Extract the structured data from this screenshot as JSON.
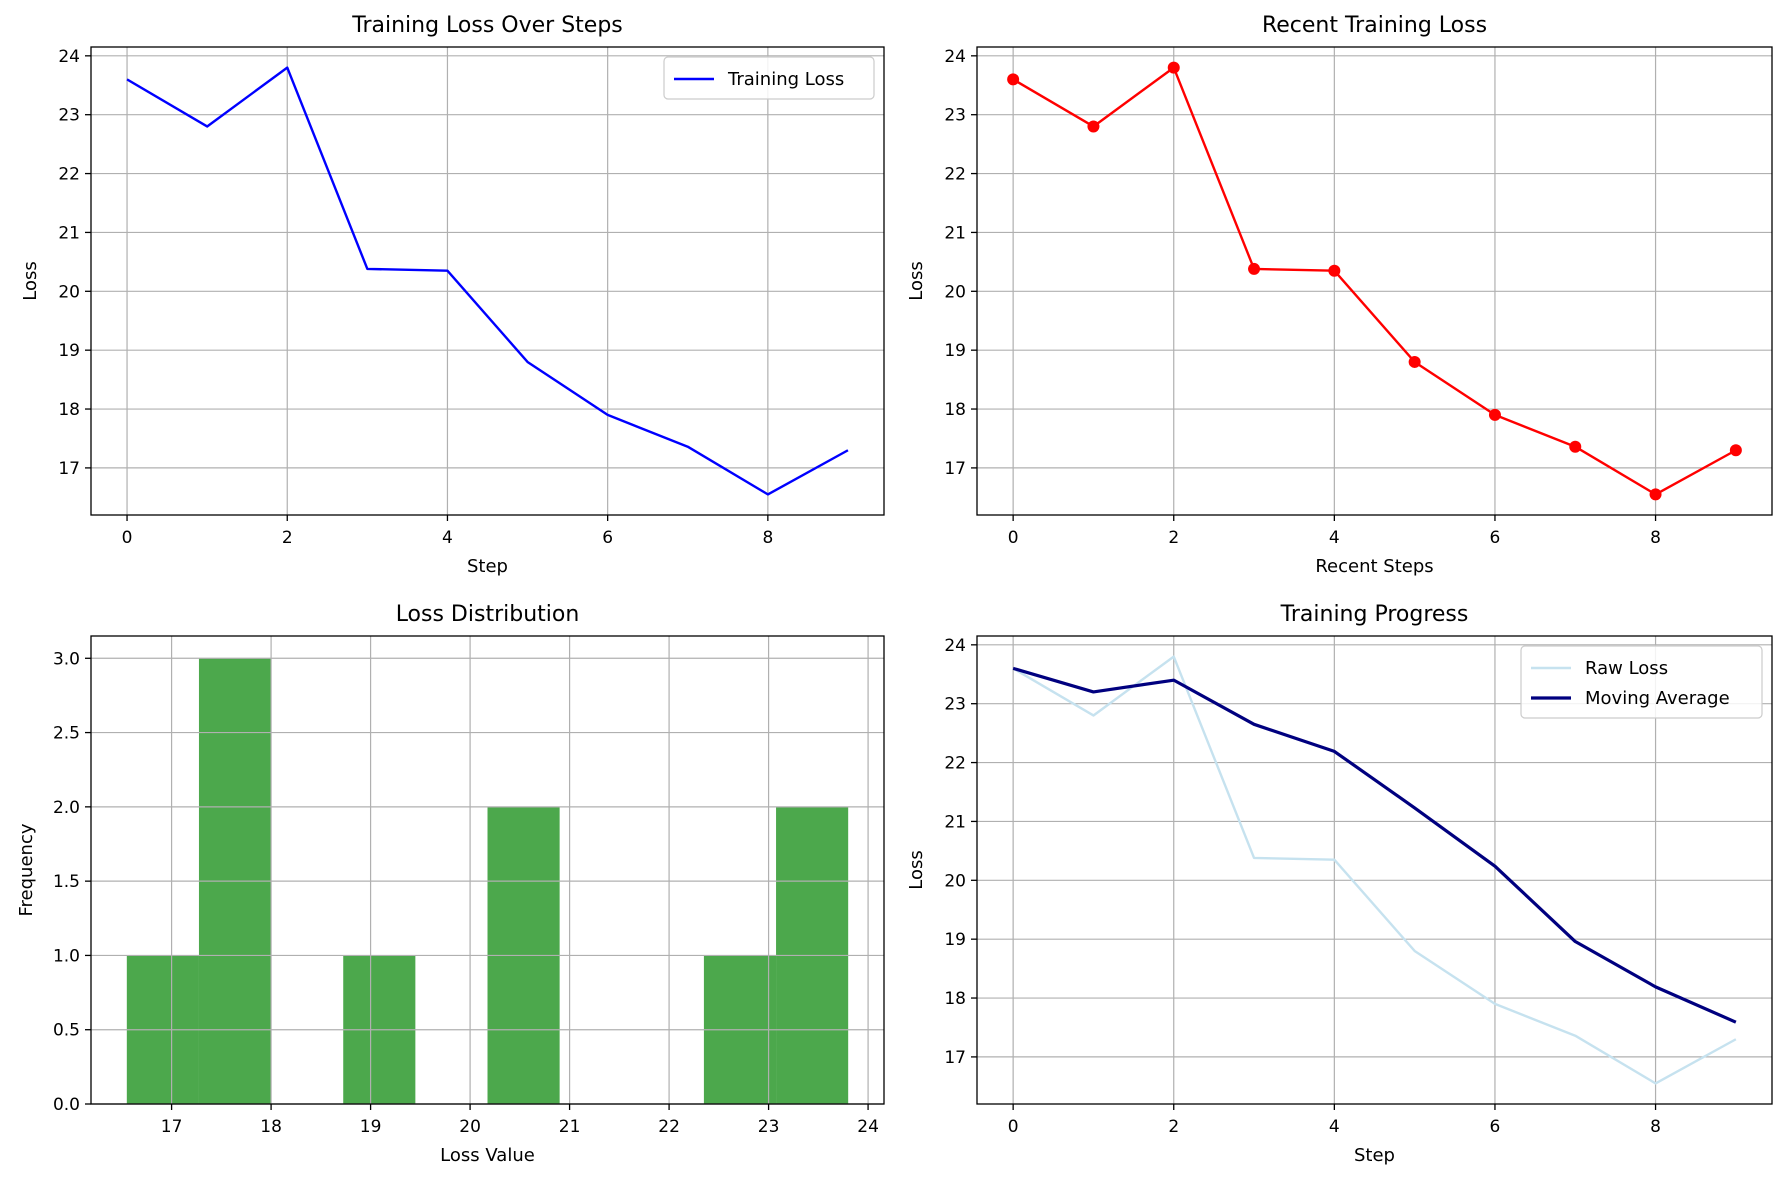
{
  "colors": {
    "training_loss": "#0000ff",
    "recent_loss": "#ff0000",
    "histogram": "#4ca84c",
    "raw_loss": "#c6e2ef",
    "moving_average": "#00007f",
    "grid": "#b0b0b0"
  },
  "chart_data": [
    {
      "type": "line",
      "title": "Training Loss Over Steps",
      "xlabel": "Step",
      "ylabel": "Loss",
      "xlim": [
        -0.45,
        9.45
      ],
      "ylim": [
        16.2,
        24.15
      ],
      "xticks": [
        0,
        2,
        4,
        6,
        8
      ],
      "yticks": [
        17,
        18,
        19,
        20,
        21,
        22,
        23,
        24
      ],
      "grid": true,
      "legend": "top-right",
      "series": [
        {
          "name": "Training Loss",
          "color": "#0000ff",
          "marker": "none",
          "x": [
            0,
            1,
            2,
            3,
            4,
            5,
            6,
            7,
            8,
            9
          ],
          "y": [
            23.6,
            22.8,
            23.8,
            20.38,
            20.35,
            18.8,
            17.9,
            17.36,
            16.55,
            17.3
          ]
        }
      ]
    },
    {
      "type": "line",
      "title": "Recent Training Loss",
      "xlabel": "Recent Steps",
      "ylabel": "Loss",
      "xlim": [
        -0.45,
        9.45
      ],
      "ylim": [
        16.2,
        24.15
      ],
      "xticks": [
        0,
        2,
        4,
        6,
        8
      ],
      "yticks": [
        17,
        18,
        19,
        20,
        21,
        22,
        23,
        24
      ],
      "grid": true,
      "series": [
        {
          "color": "#ff0000",
          "marker": "circle",
          "x": [
            0,
            1,
            2,
            3,
            4,
            5,
            6,
            7,
            8,
            9
          ],
          "y": [
            23.6,
            22.8,
            23.8,
            20.38,
            20.35,
            18.8,
            17.9,
            17.36,
            16.55,
            17.3
          ]
        }
      ]
    },
    {
      "type": "bar",
      "title": "Loss Distribution",
      "xlabel": "Loss Value",
      "ylabel": "Frequency",
      "xlim": [
        16.19,
        24.16
      ],
      "ylim": [
        0,
        3.15
      ],
      "xticks": [
        17,
        18,
        19,
        20,
        21,
        22,
        23,
        24
      ],
      "yticks": [
        "0.0",
        "0.5",
        "1.0",
        "1.5",
        "2.0",
        "2.5",
        "3.0"
      ],
      "grid": true,
      "color": "#4ca84c",
      "bins": [
        {
          "x0": 16.55,
          "x1": 17.275,
          "count": 1
        },
        {
          "x0": 17.275,
          "x1": 18.0,
          "count": 3
        },
        {
          "x0": 18.0,
          "x1": 18.725,
          "count": 0
        },
        {
          "x0": 18.725,
          "x1": 19.45,
          "count": 1
        },
        {
          "x0": 19.45,
          "x1": 20.175,
          "count": 0
        },
        {
          "x0": 20.175,
          "x1": 20.9,
          "count": 2
        },
        {
          "x0": 20.9,
          "x1": 21.625,
          "count": 0
        },
        {
          "x0": 21.625,
          "x1": 22.35,
          "count": 0
        },
        {
          "x0": 22.35,
          "x1": 23.075,
          "count": 1
        },
        {
          "x0": 23.075,
          "x1": 23.8,
          "count": 2
        }
      ]
    },
    {
      "type": "line",
      "title": "Training Progress",
      "xlabel": "Step",
      "ylabel": "Loss",
      "xlim": [
        -0.45,
        9.45
      ],
      "ylim": [
        16.2,
        24.15
      ],
      "xticks": [
        0,
        2,
        4,
        6,
        8
      ],
      "yticks": [
        17,
        18,
        19,
        20,
        21,
        22,
        23,
        24
      ],
      "grid": true,
      "legend": "top-right",
      "series": [
        {
          "name": "Raw Loss",
          "color": "#c6e2ef",
          "marker": "none",
          "x": [
            0,
            1,
            2,
            3,
            4,
            5,
            6,
            7,
            8,
            9
          ],
          "y": [
            23.6,
            22.8,
            23.8,
            20.38,
            20.35,
            18.8,
            17.9,
            17.36,
            16.55,
            17.3
          ]
        },
        {
          "name": "Moving Average",
          "color": "#00007f",
          "marker": "none",
          "x": [
            0,
            1,
            2,
            3,
            4,
            5,
            6,
            7,
            8,
            9
          ],
          "y": [
            23.6,
            23.2,
            23.4,
            22.65,
            22.19,
            21.23,
            20.24,
            18.96,
            18.19,
            17.59
          ]
        }
      ]
    }
  ]
}
